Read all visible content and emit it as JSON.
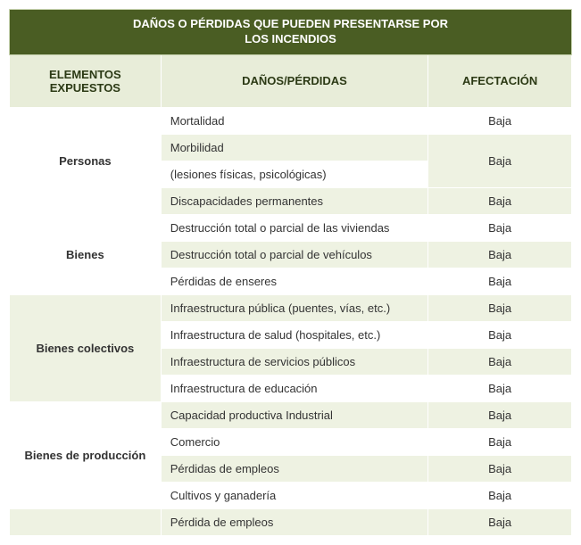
{
  "title": "DAÑOS O PÉRDIDAS QUE PUEDEN PRESENTARSE POR\nLOS INCENDIOS",
  "headers": {
    "elements": "ELEMENTOS EXPUESTOS",
    "damages": "DAÑOS/PÉRDIDAS",
    "affect": "AFECTACIÓN"
  },
  "groups": [
    {
      "category": "Personas",
      "rows": [
        {
          "damage": "Mortalidad",
          "affect": "Baja",
          "alt": false,
          "affRowspan": 1
        },
        {
          "damage": "Morbilidad",
          "affect": "Baja",
          "alt": true,
          "affRowspan": 2
        },
        {
          "damage": "(lesiones físicas, psicológicas)",
          "affect": "",
          "alt": false,
          "affRowspan": 0
        },
        {
          "damage": "Discapacidades permanentes",
          "affect": "Baja",
          "alt": true,
          "affRowspan": 1
        }
      ],
      "catBgAlt": false
    },
    {
      "category": "Bienes",
      "rows": [
        {
          "damage": "Destrucción total o parcial de las viviendas",
          "affect": "Baja",
          "alt": false,
          "affRowspan": 1
        },
        {
          "damage": "Destrucción total o parcial de vehículos",
          "affect": "Baja",
          "alt": true,
          "affRowspan": 1
        },
        {
          "damage": "Pérdidas de enseres",
          "affect": "Baja",
          "alt": false,
          "affRowspan": 1
        }
      ],
      "catBgAlt": false
    },
    {
      "category": "Bienes colectivos",
      "rows": [
        {
          "damage": "Infraestructura pública (puentes, vías, etc.)",
          "affect": "Baja",
          "alt": true,
          "affRowspan": 1
        },
        {
          "damage": "Infraestructura de salud (hospitales, etc.)",
          "affect": "Baja",
          "alt": false,
          "affRowspan": 1
        },
        {
          "damage": "Infraestructura de servicios públicos",
          "affect": "Baja",
          "alt": true,
          "affRowspan": 1
        },
        {
          "damage": "Infraestructura de educación",
          "affect": "Baja",
          "alt": false,
          "affRowspan": 1
        }
      ],
      "catBgAlt": true
    },
    {
      "category": "Bienes de producción",
      "rows": [
        {
          "damage": "Capacidad productiva Industrial",
          "affect": "Baja",
          "alt": true,
          "affRowspan": 1
        },
        {
          "damage": "Comercio",
          "affect": "Baja",
          "alt": false,
          "affRowspan": 1
        },
        {
          "damage": "Pérdidas de empleos",
          "affect": "Baja",
          "alt": true,
          "affRowspan": 1
        },
        {
          "damage": "Cultivos y ganadería",
          "affect": "Baja",
          "alt": false,
          "affRowspan": 1
        }
      ],
      "catBgAlt": false
    },
    {
      "category": "",
      "rows": [
        {
          "damage": "Pérdida de empleos",
          "affect": "Baja",
          "alt": true,
          "affRowspan": 1
        }
      ],
      "catBgAlt": true
    }
  ],
  "colors": {
    "titleBg": "#4a5d23",
    "titleText": "#ffffff",
    "headerBg": "#e8edd9",
    "headerText": "#2c3a15",
    "altRow": "#eef2e2",
    "lightRow": "#ffffff",
    "border": "#ffffff"
  }
}
